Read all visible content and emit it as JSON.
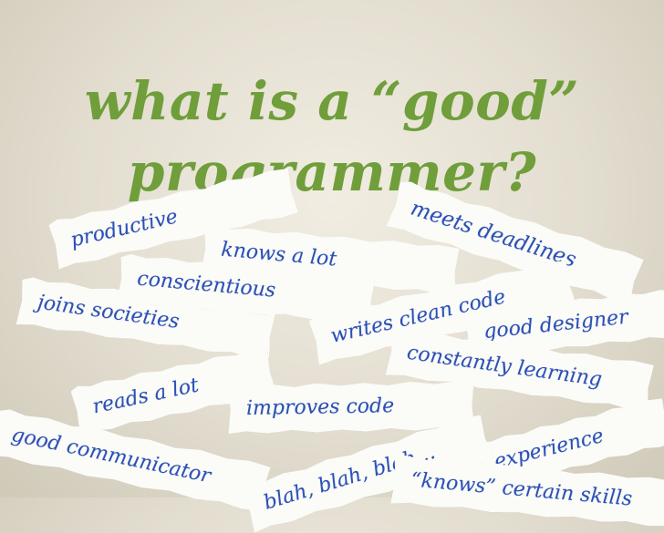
{
  "title": {
    "line1": "what is a “good”",
    "line2": "programmer?"
  },
  "strips": [
    {
      "id": "productive",
      "label": "productive"
    },
    {
      "id": "meets-deadlines",
      "label": "meets deadlines"
    },
    {
      "id": "knows-a-lot",
      "label": "knows a lot"
    },
    {
      "id": "conscientious",
      "label": "conscientious"
    },
    {
      "id": "joins-societies",
      "label": "joins societies"
    },
    {
      "id": "writes-clean-code",
      "label": "writes clean code"
    },
    {
      "id": "good-designer",
      "label": "good designer"
    },
    {
      "id": "constantly-learning",
      "label": "constantly learning"
    },
    {
      "id": "reads-a-lot",
      "label": "reads a lot"
    },
    {
      "id": "improves-code",
      "label": "improves code"
    },
    {
      "id": "experience",
      "label": "experience"
    },
    {
      "id": "good-communicator",
      "label": "good communicator"
    },
    {
      "id": "blah-blah-blah",
      "label": "blah, blah, blah…"
    },
    {
      "id": "knows-certain-skills",
      "label": "“knows” certain skills"
    }
  ]
}
